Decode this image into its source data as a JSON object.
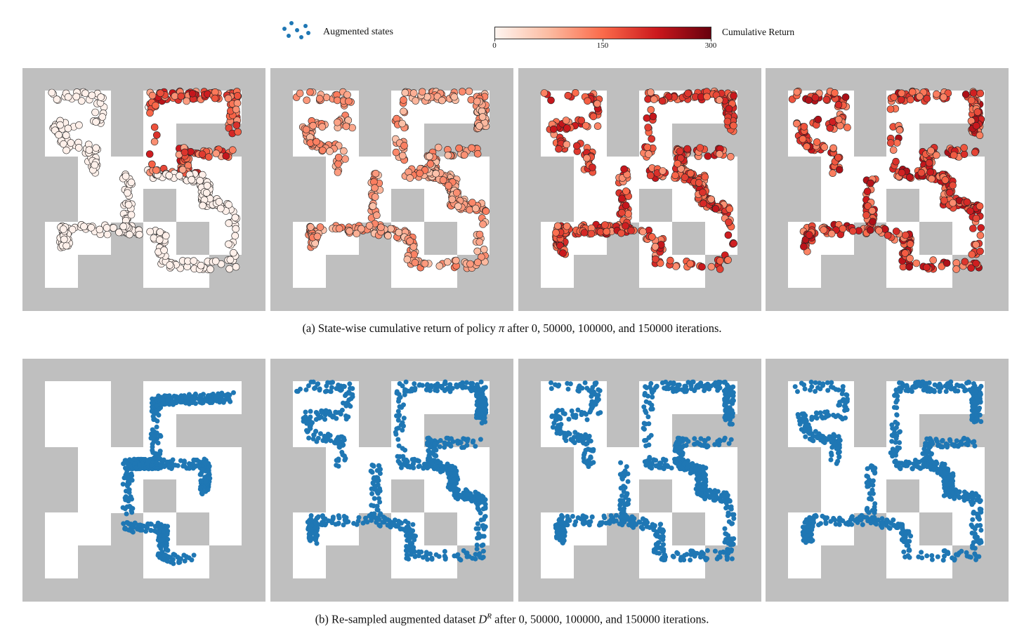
{
  "legend": {
    "augmented_label": "Augmented states",
    "colorbar_title": "Cumulative Return",
    "colorbar_ticks": [
      "0",
      "150",
      "300"
    ],
    "colormap": [
      "#fff5f0",
      "#fcbba1",
      "#fb6a4a",
      "#cb181d",
      "#67000d"
    ],
    "point_color": "#1f77b4"
  },
  "maze": {
    "wall_color": "#bfbfbf",
    "floor_color": "#ffffff"
  },
  "row_a": {
    "caption_prefix": "(a)  State-wise cumulative return of policy ",
    "caption_symbol": "π",
    "caption_suffix": " after 0, 50000, 100000, and 150000 iterations.",
    "panels": [
      "0",
      "50000",
      "100000",
      "150000"
    ]
  },
  "row_b": {
    "caption_prefix": "(b)  Re-sampled augmented dataset ",
    "caption_symbol": "D",
    "caption_superscript": "R",
    "caption_suffix": " after 0, 50000, 100000, and 150000 iterations.",
    "panels": [
      "0",
      "50000",
      "100000",
      "150000"
    ]
  }
}
